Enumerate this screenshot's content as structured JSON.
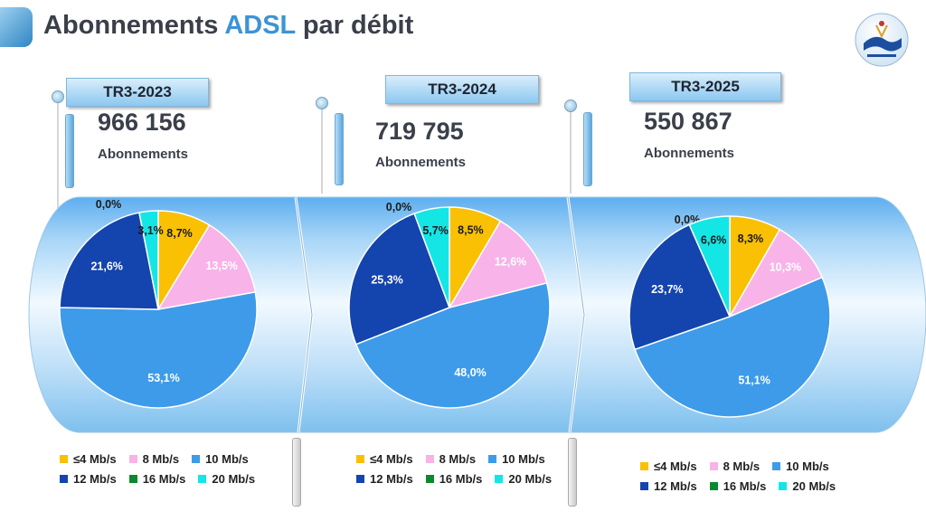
{
  "header": {
    "title_part1": "Abonnements",
    "title_accent": "ADSL",
    "title_part2": "par débit",
    "logo_icon": "authority-logo-icon"
  },
  "colors": {
    "le4": "#f9c004",
    "8": "#f8b3e8",
    "10": "#3d9be9",
    "12": "#1444ad",
    "16": "#0a8a2e",
    "20": "#14e6e6",
    "accent": "#3d93d5"
  },
  "panels": [
    {
      "period": "TR3-2023",
      "total": "966 156",
      "total_label": "Abonnements"
    },
    {
      "period": "TR3-2024",
      "total": "719 795",
      "total_label": "Abonnements"
    },
    {
      "period": "TR3-2025",
      "total": "550 867",
      "total_label": "Abonnements"
    }
  ],
  "chart_data": [
    {
      "type": "pie",
      "title": "TR3-2023",
      "categories": [
        "≤4 Mb/s",
        "8 Mb/s",
        "10 Mb/s",
        "12 Mb/s",
        "16 Mb/s",
        "20 Mb/s"
      ],
      "values": [
        8.7,
        13.5,
        53.1,
        21.6,
        0.0,
        3.1
      ],
      "labels": [
        "8,7%",
        "13,5%",
        "53,1%",
        "21,6%",
        "0,0%",
        "3,1%"
      ]
    },
    {
      "type": "pie",
      "title": "TR3-2024",
      "categories": [
        "≤4 Mb/s",
        "8 Mb/s",
        "10 Mb/s",
        "12 Mb/s",
        "16 Mb/s",
        "20 Mb/s"
      ],
      "values": [
        8.5,
        12.6,
        48.0,
        25.3,
        0.0,
        5.7
      ],
      "labels": [
        "8,5%",
        "12,6%",
        "48,0%",
        "25,3%",
        "0,0%",
        "5,7%"
      ]
    },
    {
      "type": "pie",
      "title": "TR3-2025",
      "categories": [
        "≤4 Mb/s",
        "8 Mb/s",
        "10 Mb/s",
        "12 Mb/s",
        "16 Mb/s",
        "20 Mb/s"
      ],
      "values": [
        8.3,
        10.3,
        51.1,
        23.7,
        0.0,
        6.6
      ],
      "labels": [
        "8,3%",
        "10,3%",
        "51,1%",
        "23,7%",
        "0,0%",
        "6,6%"
      ]
    }
  ],
  "legend": {
    "items": [
      "≤4 Mb/s",
      "8 Mb/s",
      "10 Mb/s",
      "12 Mb/s",
      "16 Mb/s",
      "20 Mb/s"
    ]
  }
}
